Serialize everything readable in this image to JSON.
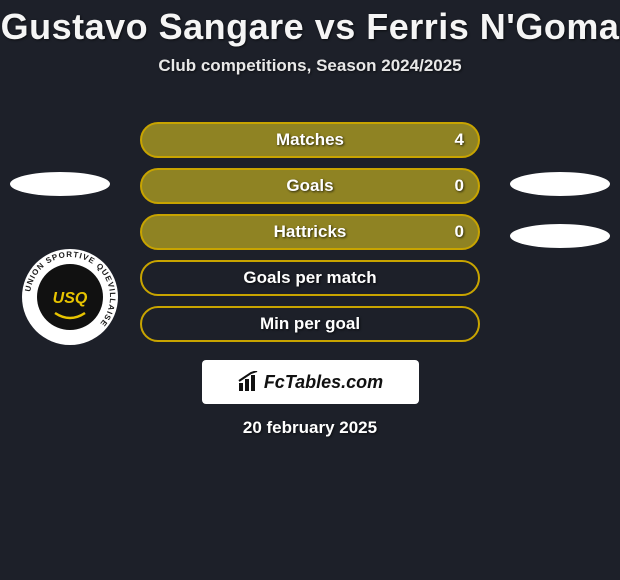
{
  "title": "Gustavo Sangare vs Ferris N'Goma",
  "subtitle": "Club competitions, Season 2024/2025",
  "stats": {
    "row_border_color": "#c8a400",
    "row_fill_color": "#8f8323",
    "row_empty_fill": "transparent",
    "items": [
      {
        "label": "Matches",
        "value": "4",
        "has_value": true
      },
      {
        "label": "Goals",
        "value": "0",
        "has_value": true
      },
      {
        "label": "Hattricks",
        "value": "0",
        "has_value": true
      },
      {
        "label": "Goals per match",
        "value": "",
        "has_value": false
      },
      {
        "label": "Min per goal",
        "value": "",
        "has_value": false
      }
    ]
  },
  "brand": {
    "name": "FcTables.com"
  },
  "date": "20 february 2025",
  "crest": {
    "outer_ring_text": "UNION SPORTIVE QUEVILLAISE",
    "ring_bg": "#ffffff",
    "ring_text_color": "#1b1b1b",
    "inner_bg": "#111111",
    "inner_accent": "#e8c400"
  },
  "placeholders": {
    "oval_bg": "#ffffff"
  }
}
